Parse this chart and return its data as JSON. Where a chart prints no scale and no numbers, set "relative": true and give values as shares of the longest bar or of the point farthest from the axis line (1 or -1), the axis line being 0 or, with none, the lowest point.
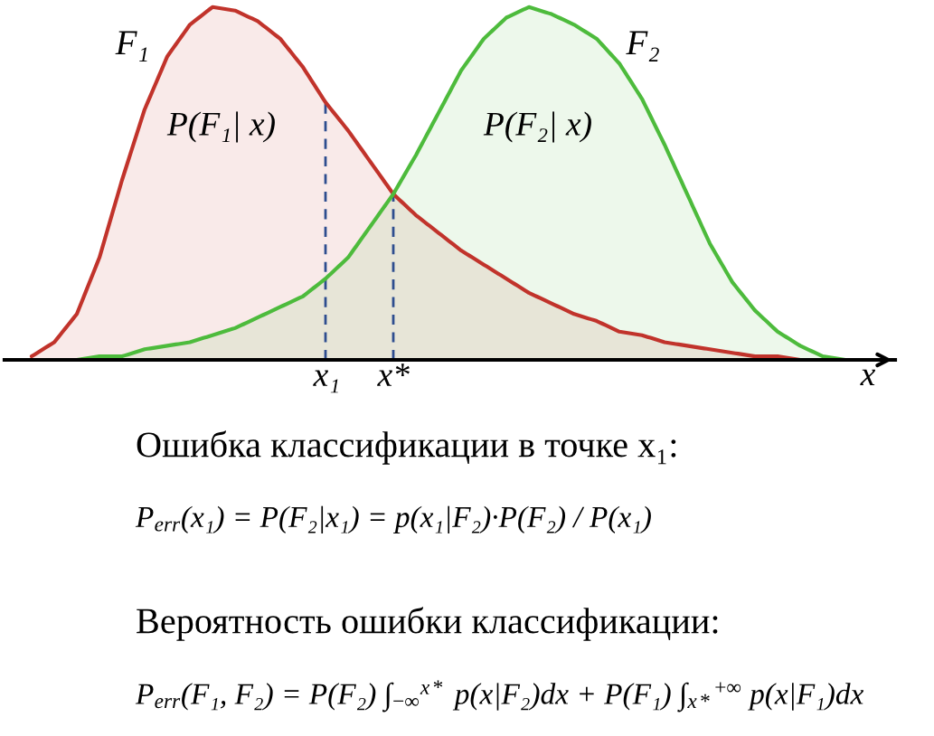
{
  "chart_data": {
    "type": "area",
    "relative": true,
    "xlabel": "x",
    "categories": [
      null,
      null,
      null,
      null,
      null,
      null,
      null,
      null,
      null,
      null,
      null,
      null,
      null,
      null,
      "x₁",
      null,
      null,
      "x*",
      null,
      null,
      null,
      null,
      null,
      null,
      null,
      null,
      null,
      null,
      null,
      null,
      null,
      null,
      null,
      null,
      null,
      null,
      null,
      null,
      null
    ],
    "series": [
      {
        "name": "F₁",
        "color": "#c1332b",
        "values": [
          null,
          0.01,
          0.05,
          0.13,
          0.29,
          0.51,
          0.71,
          0.86,
          0.95,
          1.0,
          0.99,
          0.96,
          0.91,
          0.83,
          0.73,
          0.65,
          0.56,
          0.47,
          0.41,
          0.36,
          0.31,
          0.27,
          0.23,
          0.19,
          0.16,
          0.13,
          0.11,
          0.08,
          0.07,
          0.05,
          0.04,
          0.03,
          0.02,
          0.01,
          0.01,
          0.0,
          null,
          null,
          null
        ]
      },
      {
        "name": "F₂",
        "color": "#4dbb3c",
        "values": [
          null,
          null,
          null,
          0.0,
          0.01,
          0.01,
          0.03,
          0.04,
          0.05,
          0.07,
          0.09,
          0.12,
          0.15,
          0.18,
          0.23,
          0.29,
          0.38,
          0.47,
          0.58,
          0.7,
          0.82,
          0.91,
          0.97,
          1.0,
          0.98,
          0.95,
          0.91,
          0.84,
          0.74,
          0.61,
          0.47,
          0.33,
          0.22,
          0.14,
          0.08,
          0.04,
          0.01,
          0.0,
          null
        ]
      }
    ],
    "ref_lines": [
      {
        "axis": "x",
        "value": "x₁",
        "color": "#2e4d8f",
        "line_style": "dashed"
      },
      {
        "axis": "x",
        "value": "x*",
        "color": "#2e4d8f",
        "line_style": "dashed"
      }
    ],
    "annotations": [
      "P(F₁| x)",
      "P(F₂| x)",
      "Ошибка классификации в точке x₁:",
      "P$_{err}$(x₁) = P(F₂|x₁) = p(x₁|F₂)·P(F₂) / P(x₁)",
      "Вероятность ошибки классификации:",
      "P$_{err}$(F₁, F₂) = P(F₂) ∫$_{−∞}$$^{x*}$ p(x|F₂)dx + P(F₁) ∫$_{x*}$$^{+∞}$ p(x|F₁)dx"
    ]
  }
}
